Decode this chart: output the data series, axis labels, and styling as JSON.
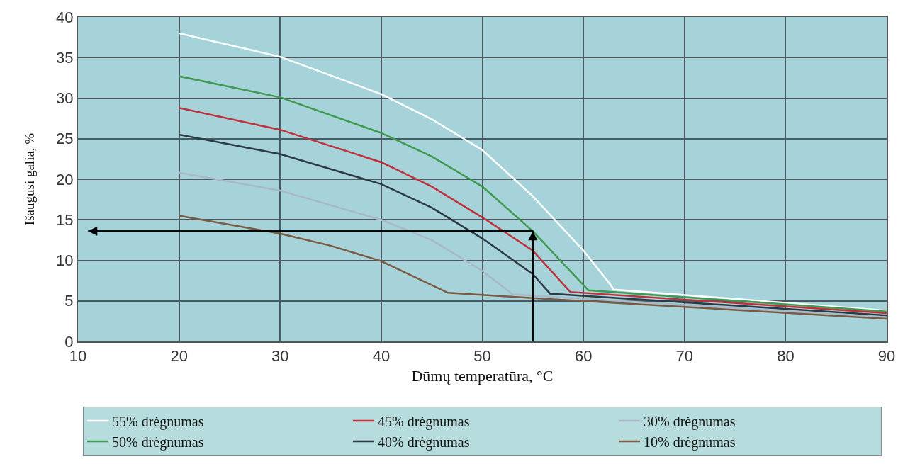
{
  "chart_data": {
    "type": "line",
    "xlabel": "Dūmų temperatūra, °C",
    "ylabel": "Išaugusi galia, %",
    "xlim": [
      10,
      90
    ],
    "xticks": [
      10,
      20,
      30,
      40,
      50,
      60,
      70,
      80,
      90
    ],
    "ylim": [
      0,
      40
    ],
    "yticks": [
      0,
      5,
      10,
      15,
      20,
      25,
      30,
      35,
      40
    ],
    "grid": true,
    "legend": "bottom",
    "line_style": "solid",
    "marker": "none",
    "series": [
      {
        "name": "55% drėgnumas",
        "color": "#ffffff",
        "x": [
          20,
          30,
          40,
          45,
          50,
          55,
          60,
          62.5,
          63,
          90
        ],
        "values": [
          38,
          35.1,
          30.5,
          27.4,
          23.6,
          17.9,
          11.2,
          7.3,
          6.4,
          3.8
        ]
      },
      {
        "name": "50% drėgnumas",
        "color": "#3f9a4f",
        "x": [
          20,
          30,
          40,
          45,
          50,
          55,
          58,
          60.5,
          90
        ],
        "values": [
          32.7,
          30.1,
          25.7,
          22.8,
          19.1,
          13.6,
          9.6,
          6.3,
          3.7
        ]
      },
      {
        "name": "45% drėgnumas",
        "color": "#c0303a",
        "x": [
          20,
          30,
          40,
          45,
          50,
          55,
          58.7,
          90
        ],
        "values": [
          28.8,
          26.1,
          22.1,
          19.1,
          15.3,
          11.2,
          6.1,
          3.5
        ]
      },
      {
        "name": "40% drėgnumas",
        "color": "#2c3a44",
        "x": [
          20,
          30,
          40,
          45,
          50,
          55,
          56.7,
          90
        ],
        "values": [
          25.5,
          23.1,
          19.4,
          16.5,
          12.7,
          8.3,
          5.9,
          3.2
        ]
      },
      {
        "name": "30% drėgnumas",
        "color": "#a8b8c8",
        "x": [
          20,
          30,
          40,
          45,
          50,
          53,
          90
        ],
        "values": [
          20.8,
          18.6,
          15,
          12.5,
          8.7,
          5.8,
          3
        ]
      },
      {
        "name": "10% drėgnumas",
        "color": "#7a5a40",
        "x": [
          20,
          30,
          35,
          40,
          46.6,
          57,
          90
        ],
        "values": [
          15.5,
          13.3,
          11.8,
          9.9,
          6,
          5.2,
          2.8
        ]
      },
      {
        "color": "#000000",
        "x": [
          55,
          55,
          11
        ],
        "values": [
          0,
          13.6,
          13.6
        ]
      }
    ]
  }
}
